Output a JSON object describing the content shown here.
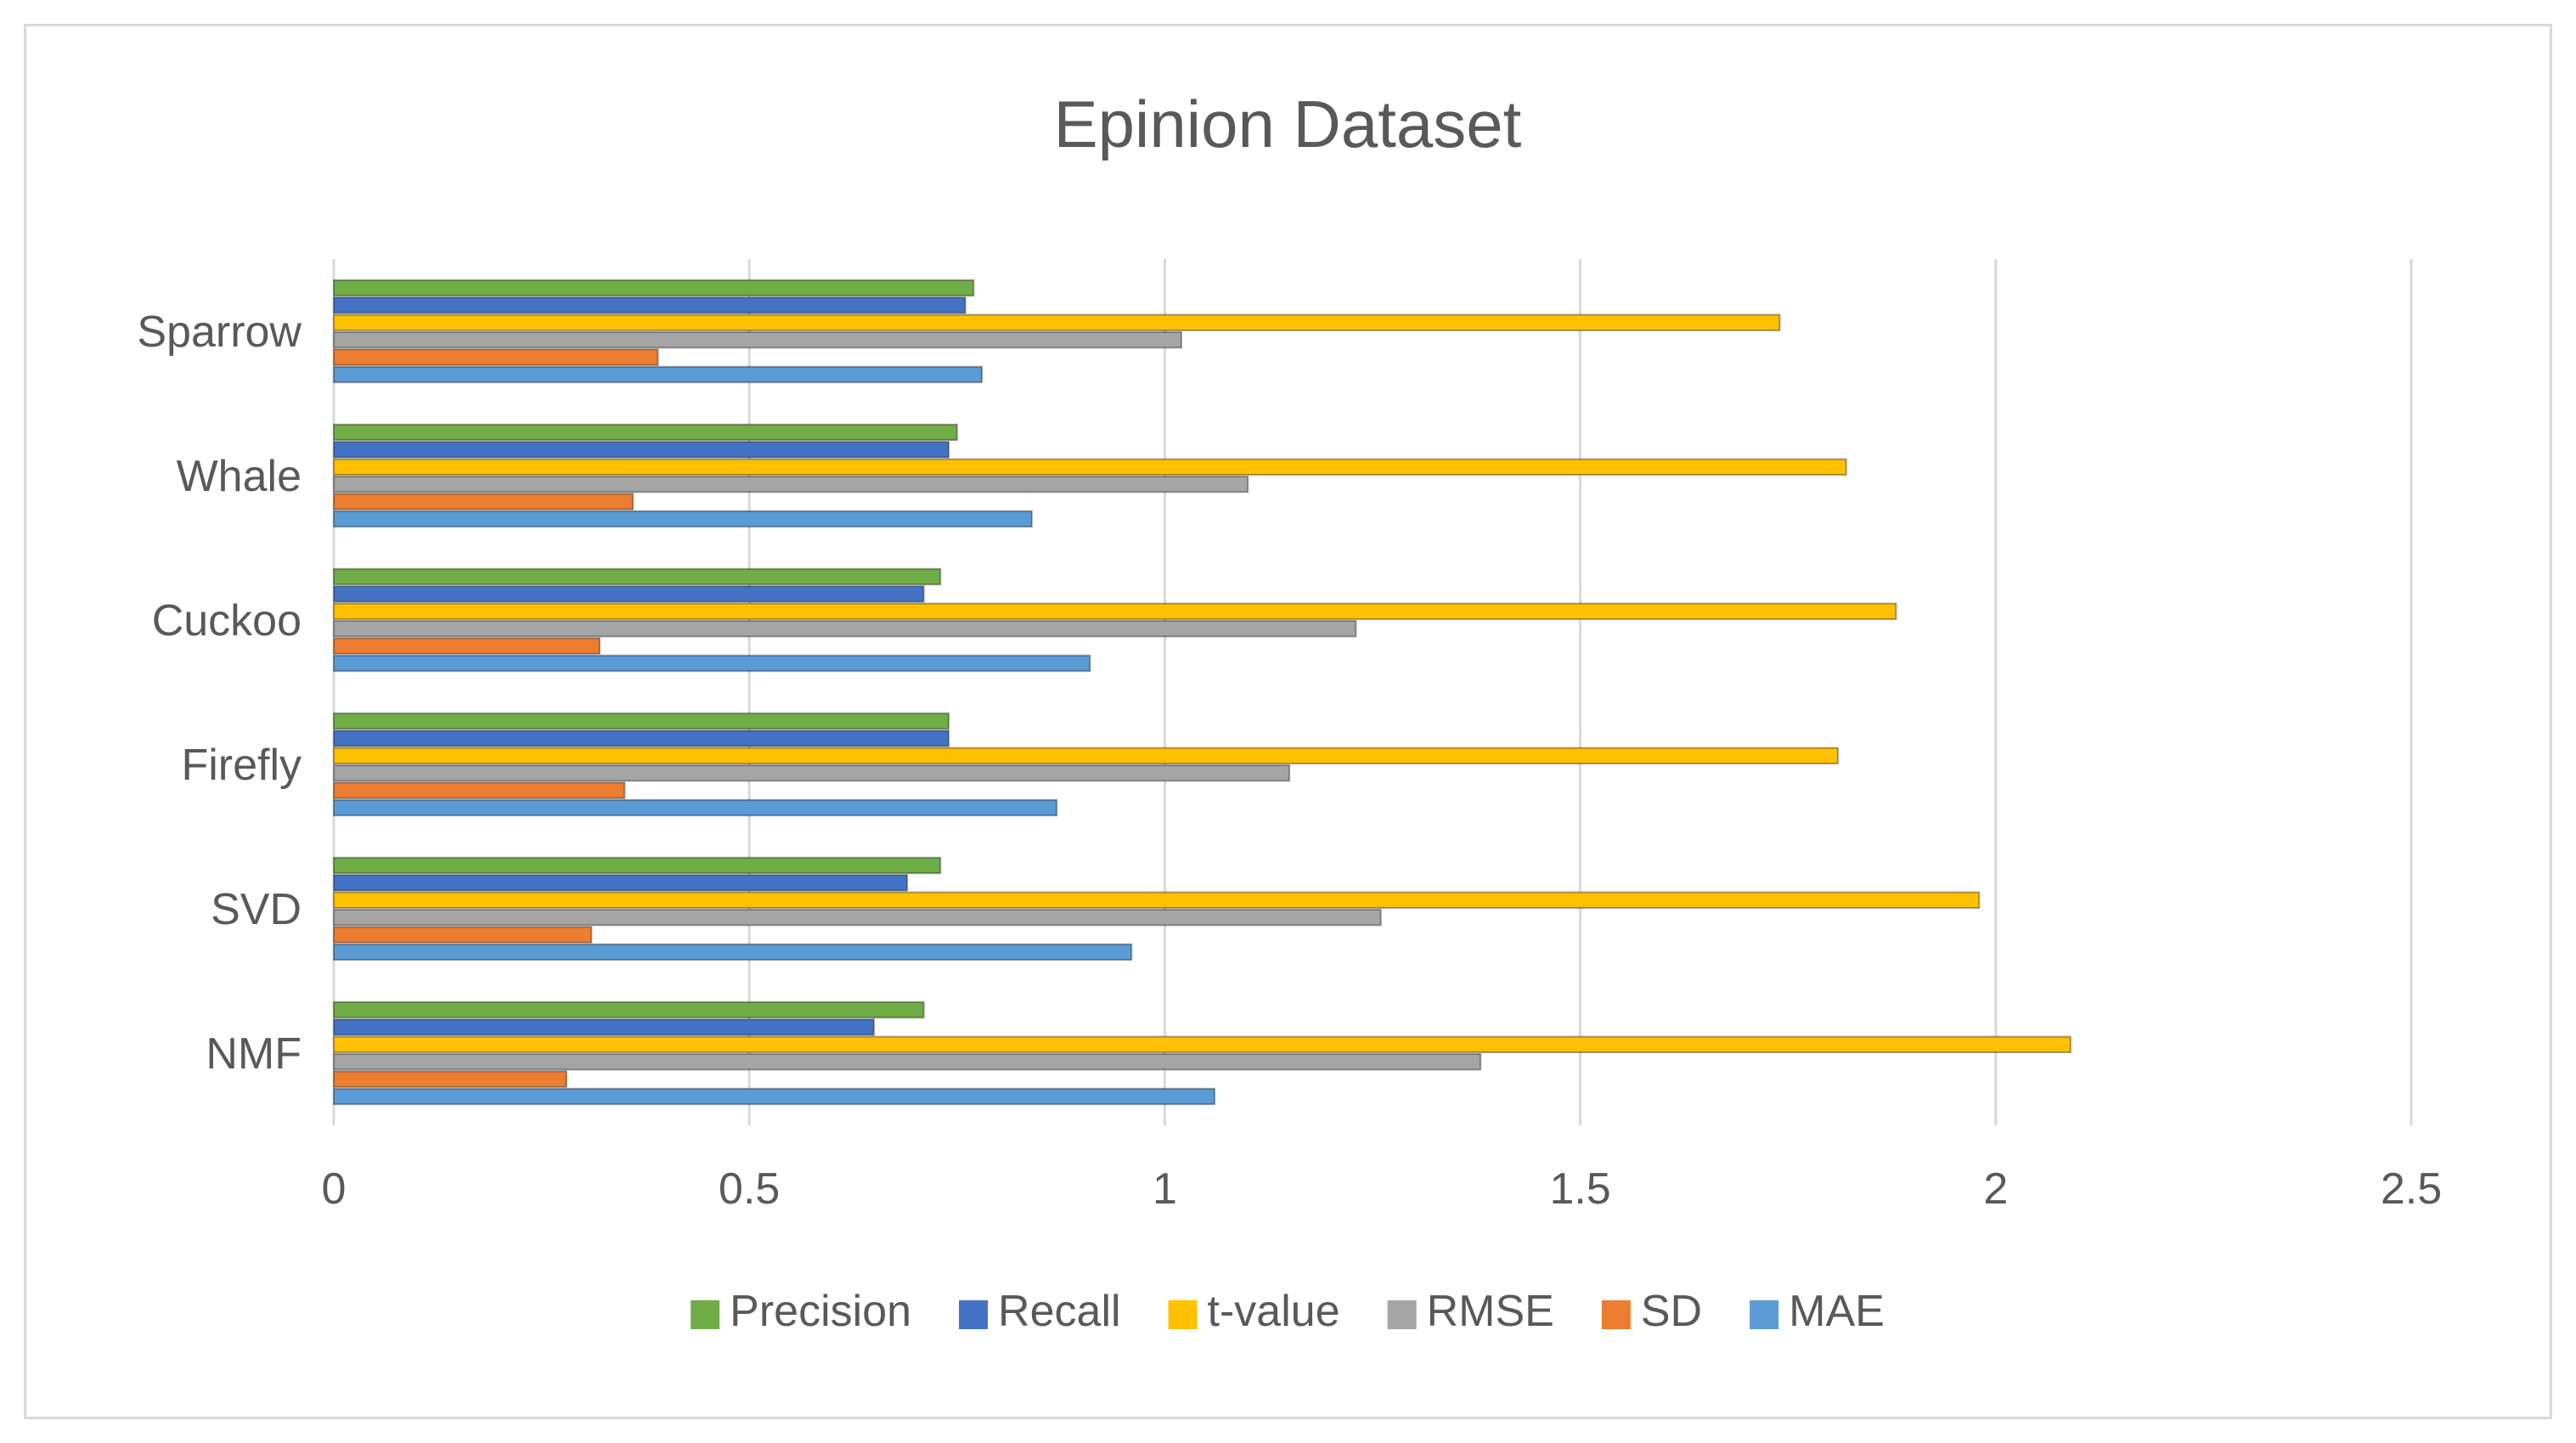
{
  "chart_data": {
    "type": "bar",
    "orientation": "horizontal",
    "title": "Epinion Dataset",
    "xlabel": "",
    "ylabel": "",
    "xlim": [
      0,
      2.5
    ],
    "xticks": [
      "0",
      "0.5",
      "1",
      "1.5",
      "2",
      "2.5"
    ],
    "categories": [
      "NMF",
      "SVD",
      "Firefly",
      "Cuckoo",
      "Whale",
      "Sparrow"
    ],
    "series": [
      {
        "name": "MAE",
        "color": "#5b9bd5",
        "values": [
          1.06,
          0.96,
          0.87,
          0.91,
          0.84,
          0.78
        ]
      },
      {
        "name": "SD",
        "color": "#ed7d31",
        "values": [
          0.28,
          0.31,
          0.35,
          0.32,
          0.36,
          0.39
        ]
      },
      {
        "name": "RMSE",
        "color": "#a5a5a5",
        "values": [
          1.38,
          1.26,
          1.15,
          1.23,
          1.1,
          1.02
        ]
      },
      {
        "name": "t-value",
        "color": "#ffc000",
        "values": [
          2.09,
          1.98,
          1.81,
          1.88,
          1.82,
          1.74
        ]
      },
      {
        "name": "Recall",
        "color": "#4472c4",
        "values": [
          0.65,
          0.69,
          0.74,
          0.71,
          0.74,
          0.76
        ]
      },
      {
        "name": "Precision",
        "color": "#70ad47",
        "values": [
          0.71,
          0.73,
          0.74,
          0.73,
          0.75,
          0.77
        ]
      }
    ],
    "legend_order": [
      "Precision",
      "Recall",
      "t-value",
      "RMSE",
      "SD",
      "MAE"
    ],
    "legend_position": "bottom",
    "grid": true
  }
}
